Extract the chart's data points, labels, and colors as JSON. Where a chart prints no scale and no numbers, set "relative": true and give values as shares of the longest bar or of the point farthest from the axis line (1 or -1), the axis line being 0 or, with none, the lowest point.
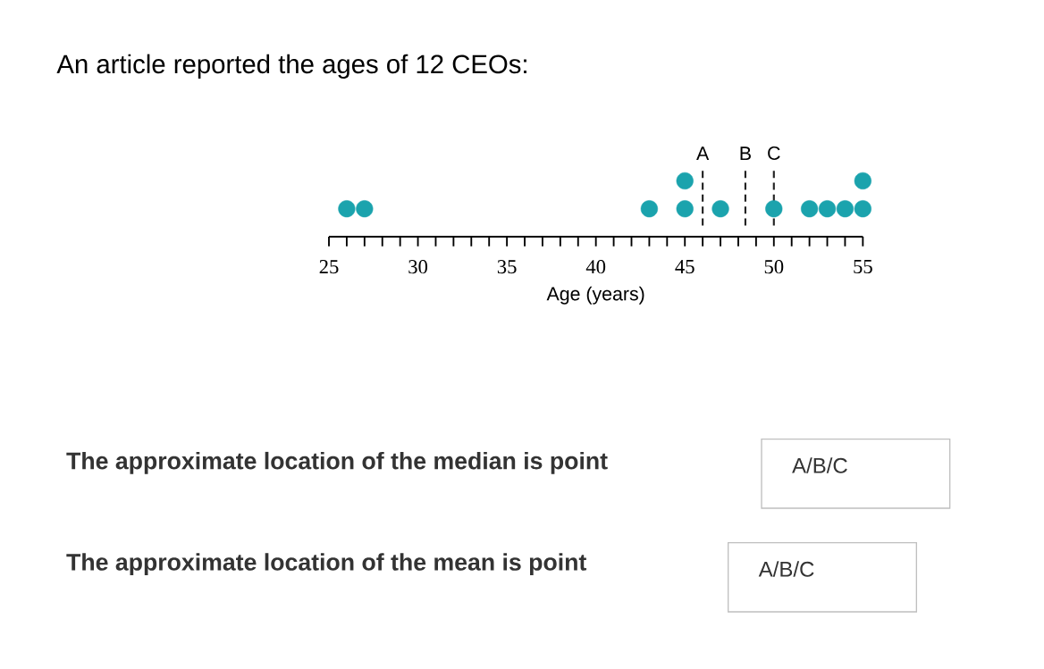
{
  "chart_data": {
    "type": "scatter",
    "title": "An article reported the ages of 12 CEOs:",
    "xlabel": "Age (years)",
    "x": [
      26,
      27,
      43,
      45,
      45,
      47,
      50,
      52,
      53,
      54,
      55,
      55
    ],
    "values": [
      0.5,
      0.5,
      0.5,
      0.5,
      1,
      0.5,
      0.5,
      0.5,
      0.5,
      0.5,
      0.5,
      1
    ],
    "relative": true,
    "color": "#1ba3ad",
    "xlim": [
      25,
      55
    ],
    "xticks": [
      25,
      {
        "value": 26,
        "label": null
      },
      {
        "value": 27,
        "label": null
      },
      {
        "value": 28,
        "label": null
      },
      {
        "value": 29,
        "label": null
      },
      30,
      {
        "value": 31,
        "label": null
      },
      {
        "value": 32,
        "label": null
      },
      {
        "value": 33,
        "label": null
      },
      {
        "value": 34,
        "label": null
      },
      35,
      {
        "value": 36,
        "label": null
      },
      {
        "value": 37,
        "label": null
      },
      {
        "value": 38,
        "label": null
      },
      {
        "value": 39,
        "label": null
      },
      40,
      {
        "value": 41,
        "label": null
      },
      {
        "value": 42,
        "label": null
      },
      {
        "value": 43,
        "label": null
      },
      {
        "value": 44,
        "label": null
      },
      45,
      {
        "value": 46,
        "label": null
      },
      {
        "value": 47,
        "label": null
      },
      {
        "value": 48,
        "label": null
      },
      {
        "value": 49,
        "label": null
      },
      50,
      {
        "value": 51,
        "label": null
      },
      {
        "value": 52,
        "label": null
      },
      {
        "value": 53,
        "label": null
      },
      {
        "value": 54,
        "label": null
      },
      55
    ],
    "ref_lines": [
      {
        "axis": "x",
        "value": 46,
        "label": "A",
        "line_style": "dashed",
        "color": "#222222"
      },
      {
        "axis": "x",
        "value": 48.4,
        "label": "B",
        "line_style": "dashed",
        "color": "#222222"
      },
      {
        "axis": "x",
        "value": 50,
        "label": "C",
        "line_style": "dashed",
        "color": "#222222"
      }
    ],
    "annotations": [
      "The approximate location of the median is point",
      "A/B/C",
      "The approximate location of the mean is point",
      "A/B/C"
    ],
    "grid": false
  }
}
